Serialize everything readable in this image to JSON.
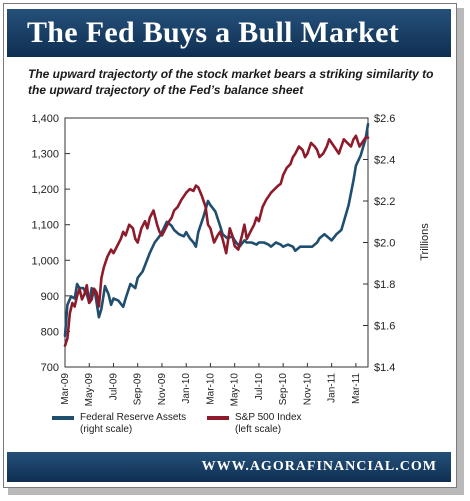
{
  "banner": {
    "title": "The Fed Buys a Bull Market"
  },
  "subtitle": "The upward trajectorty of the stock market bears a striking similarity to the upward trajectory of the Fed’s balance sheet",
  "footer": {
    "url": "WWW.AGORAFINANCIAL.COM"
  },
  "colors": {
    "fed": "#1f4e6f",
    "sp": "#8e1b2b",
    "banner": "#1a3f66"
  },
  "chart_data": {
    "type": "line",
    "title": "The Fed Buys a Bull Market",
    "subtitle": "The upward trajectorty of the stock market bears a striking similarity to the upward trajectory of the Fed’s balance sheet",
    "xlabel": "",
    "ylabel_left": "",
    "ylabel_right": "Trillions",
    "x_ticks": [
      "Mar-09",
      "May-09",
      "Jul-09",
      "Sep-09",
      "Nov-09",
      "Jan-10",
      "Mar-10",
      "May-10",
      "Jul-10",
      "Sep-10",
      "Nov-10",
      "Jan-11",
      "Mar-11"
    ],
    "y_left_ticks": [
      "700",
      "800",
      "900",
      "1,000",
      "1,100",
      "1,200",
      "1,300",
      "1,400"
    ],
    "y_right_ticks": [
      "$1.4",
      "$1.6",
      "$1.8",
      "$2.0",
      "$2.2",
      "$2.4",
      "$2.6"
    ],
    "ylim_left": [
      700,
      1400
    ],
    "ylim_right": [
      1.4,
      2.6
    ],
    "xlim": [
      0,
      25
    ],
    "grid": false,
    "legend_position": "bottom",
    "series": [
      {
        "name": "Federal Reserve Assets",
        "note": "(right scale)",
        "axis": "right",
        "color": "#1f4e6f",
        "x": [
          0,
          0.2,
          0.5,
          0.8,
          1.0,
          1.2,
          1.5,
          1.8,
          2.0,
          2.2,
          2.5,
          2.8,
          3.0,
          3.3,
          3.6,
          3.8,
          4.0,
          4.4,
          4.8,
          5.0,
          5.4,
          5.8,
          6.0,
          6.4,
          6.8,
          7.0,
          7.4,
          7.8,
          8.0,
          8.4,
          8.8,
          9.0,
          9.4,
          9.8,
          10.0,
          10.3,
          10.6,
          10.8,
          11.0,
          11.4,
          11.8,
          12.0,
          12.4,
          12.8,
          13.0,
          13.4,
          13.8,
          14.0,
          14.4,
          14.8,
          15.0,
          15.4,
          15.8,
          16.0,
          16.4,
          16.8,
          17.0,
          17.4,
          17.8,
          18.0,
          18.4,
          18.8,
          19.0,
          19.4,
          19.8,
          20.0,
          20.4,
          20.8,
          21.0,
          21.4,
          21.8,
          22.0,
          22.4,
          22.8,
          23.0,
          23.4,
          23.8,
          24.0,
          24.4,
          24.8,
          25.0
        ],
        "y": [
          1.55,
          1.7,
          1.74,
          1.73,
          1.8,
          1.78,
          1.78,
          1.75,
          1.71,
          1.78,
          1.75,
          1.64,
          1.68,
          1.79,
          1.75,
          1.7,
          1.73,
          1.72,
          1.69,
          1.73,
          1.8,
          1.78,
          1.83,
          1.86,
          1.92,
          1.95,
          2.0,
          2.03,
          2.05,
          2.1,
          2.08,
          2.06,
          2.04,
          2.03,
          2.05,
          2.02,
          2.0,
          1.98,
          2.05,
          2.12,
          2.2,
          2.18,
          2.15,
          2.08,
          2.04,
          2.02,
          2.03,
          2.01,
          1.98,
          2.01,
          2.0,
          2.0,
          1.99,
          2.0,
          2.0,
          1.99,
          1.98,
          2.0,
          1.99,
          1.98,
          1.99,
          1.98,
          1.96,
          1.98,
          1.98,
          1.98,
          1.98,
          2.0,
          2.02,
          2.04,
          2.02,
          2.01,
          2.04,
          2.06,
          2.1,
          2.18,
          2.3,
          2.37,
          2.42,
          2.5,
          2.57
        ]
      },
      {
        "name": "S&P 500 Index",
        "note": "(left scale)",
        "axis": "left",
        "color": "#8e1b2b",
        "x": [
          0,
          0.2,
          0.4,
          0.6,
          0.8,
          1.0,
          1.2,
          1.4,
          1.6,
          1.8,
          2.0,
          2.2,
          2.4,
          2.6,
          2.8,
          3.0,
          3.2,
          3.5,
          3.8,
          4.0,
          4.3,
          4.6,
          4.8,
          5.0,
          5.3,
          5.6,
          5.8,
          6.0,
          6.3,
          6.6,
          6.8,
          7.0,
          7.3,
          7.6,
          7.8,
          8.0,
          8.3,
          8.6,
          8.8,
          9.0,
          9.3,
          9.6,
          9.8,
          10.0,
          10.3,
          10.6,
          10.8,
          11.0,
          11.3,
          11.6,
          11.8,
          12.0,
          12.3,
          12.6,
          12.8,
          13.0,
          13.3,
          13.6,
          13.8,
          14.0,
          14.3,
          14.6,
          14.8,
          15.0,
          15.3,
          15.6,
          15.8,
          16.0,
          16.3,
          16.6,
          16.8,
          17.0,
          17.3,
          17.6,
          17.8,
          18.0,
          18.3,
          18.6,
          18.8,
          19.0,
          19.3,
          19.6,
          19.8,
          20.0,
          20.3,
          20.6,
          20.8,
          21.0,
          21.3,
          21.6,
          21.8,
          22.0,
          22.3,
          22.6,
          22.8,
          23.0,
          23.3,
          23.6,
          23.8,
          24.0,
          24.3,
          24.6,
          24.8,
          25.0
        ],
        "y": [
          760,
          780,
          850,
          880,
          870,
          900,
          920,
          890,
          905,
          930,
          880,
          890,
          920,
          910,
          870,
          950,
          980,
          1010,
          1030,
          1020,
          1040,
          1060,
          1080,
          1070,
          1100,
          1090,
          1060,
          1050,
          1090,
          1110,
          1090,
          1120,
          1140,
          1100,
          1080,
          1070,
          1090,
          1110,
          1120,
          1140,
          1150,
          1170,
          1180,
          1190,
          1200,
          1195,
          1210,
          1205,
          1180,
          1150,
          1100,
          1090,
          1050,
          1070,
          1080,
          1060,
          1020,
          1090,
          1070,
          1040,
          1030,
          1070,
          1100,
          1060,
          1080,
          1100,
          1120,
          1110,
          1150,
          1170,
          1180,
          1190,
          1200,
          1210,
          1215,
          1240,
          1260,
          1270,
          1290,
          1300,
          1320,
          1310,
          1290,
          1300,
          1330,
          1320,
          1310,
          1290,
          1300,
          1320,
          1340,
          1330,
          1315,
          1300,
          1320,
          1340,
          1330,
          1320,
          1340,
          1350,
          1320,
          1335,
          1345,
          1345
        ]
      }
    ]
  }
}
